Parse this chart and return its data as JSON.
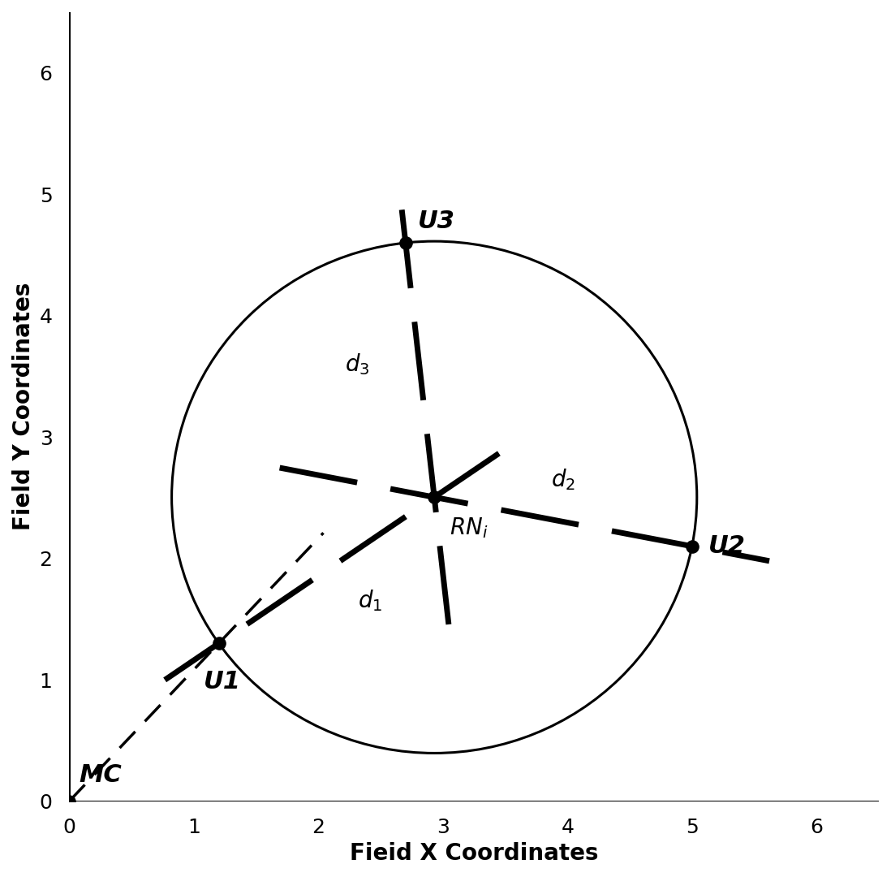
{
  "xlim": [
    0,
    6.5
  ],
  "ylim": [
    0,
    6.5
  ],
  "xlabel": "Fieid X Coordinates",
  "ylabel": "Field Y Coordinates",
  "xlabel_fontsize": 20,
  "ylabel_fontsize": 20,
  "tick_fontsize": 18,
  "xticks": [
    0,
    1,
    2,
    3,
    4,
    5,
    6
  ],
  "yticks": [
    0,
    1,
    2,
    3,
    4,
    5,
    6
  ],
  "points": {
    "MC": [
      0.0,
      0.0
    ],
    "U1": [
      1.2,
      1.3
    ],
    "U2": [
      5.0,
      2.1
    ],
    "U3": [
      2.7,
      4.6
    ],
    "RNi": [
      2.95,
      2.7
    ]
  },
  "circle_color": "#000000",
  "circle_linewidth": 2.2,
  "point_color": "#000000",
  "point_size": 120,
  "thick_dash_color": "#000000",
  "thick_dash_linewidth": 5.0,
  "thick_dash_on": 14,
  "thick_dash_off": 6,
  "thin_dash_color": "#000000",
  "thin_dash_linewidth": 2.5,
  "thin_dash_on": 8,
  "thin_dash_off": 5,
  "label_fontsize": 22,
  "background_color": "#ffffff"
}
